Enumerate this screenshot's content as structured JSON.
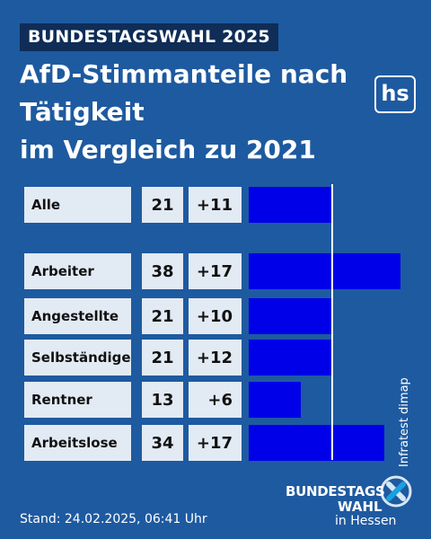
{
  "header": {
    "tag": "BUNDESTAGSWAHL 2025",
    "title_lines": [
      "AfD-Stimmanteile nach",
      "Tätigkeit",
      "im Vergleich zu 2021"
    ],
    "logo": "hs"
  },
  "chart_data": {
    "type": "bar",
    "orientation": "horizontal",
    "title": "AfD-Stimmanteile nach Tätigkeit im Vergleich zu 2021",
    "categories": [
      "Alle",
      "Arbeiter",
      "Angestellte",
      "Selbständige",
      "Rentner",
      "Arbeitslose"
    ],
    "values": [
      21,
      38,
      21,
      21,
      13,
      34
    ],
    "value_labels": [
      "21",
      "38",
      "21",
      "21",
      "13",
      "34"
    ],
    "changes": [
      "+11",
      "+17",
      "+10",
      "+12",
      "+6",
      "+17"
    ],
    "reference_value": 21,
    "xlim": [
      0,
      40
    ],
    "bar_color": "#0000e8",
    "grid": false
  },
  "footer": {
    "source": "Infratest dimap",
    "stand": "Stand: 24.02.2025, 06:41 Uhr",
    "logo_line1": "BUNDESTAGS",
    "logo_line2": "WAHL",
    "logo_line3": "in Hessen"
  },
  "colors": {
    "background": "#1e5aa0",
    "tag_background": "#0f2d57",
    "cell_background": "#e2eaf4",
    "bar": "#0000e8",
    "logo_x_left": "#d7e6f5",
    "logo_x_right": "#1aa0e0"
  }
}
